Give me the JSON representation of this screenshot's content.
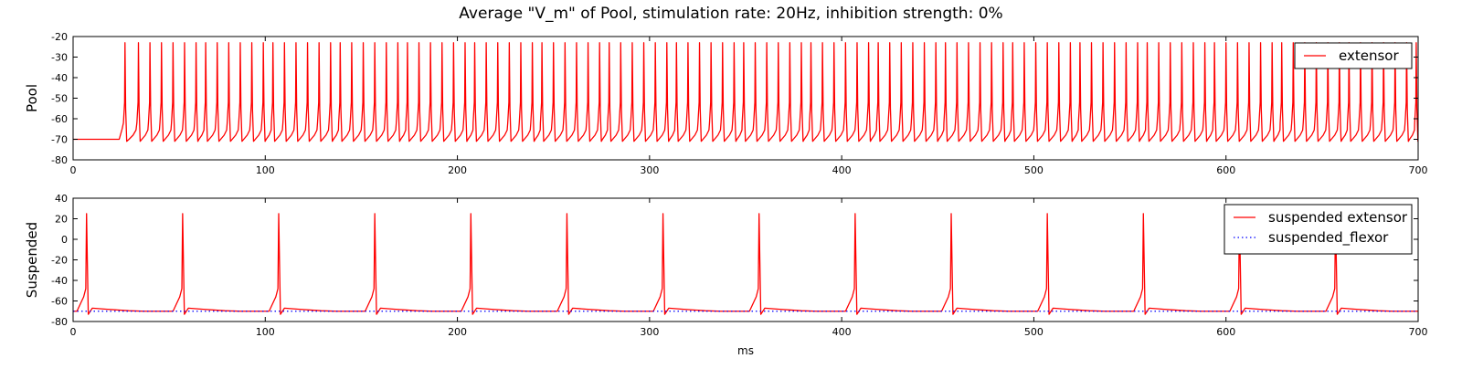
{
  "figure": {
    "title": "Average \"V_m\" of Pool, stimulation rate: 20Hz, inhibition strength: 0%"
  },
  "chart_data": [
    {
      "type": "line",
      "title": "",
      "xlabel": "",
      "ylabel": "Pool",
      "xlim": [
        0,
        700
      ],
      "ylim": [
        -80,
        -20
      ],
      "xticks": [
        0,
        100,
        200,
        300,
        400,
        500,
        600,
        700
      ],
      "yticks": [
        -80,
        -70,
        -60,
        -50,
        -40,
        -30,
        -20
      ],
      "legend_position": "top-right",
      "series": [
        {
          "name": "extensor",
          "color": "#ff0000",
          "style": "solid",
          "rest_value": -70,
          "onset_ms": 24,
          "trough_value": -71,
          "peak_value": -23,
          "spike_times": [
            27,
            34,
            40,
            46,
            52,
            58,
            64,
            69,
            75,
            81,
            87,
            93,
            99,
            104,
            110,
            116,
            122,
            128,
            134,
            139,
            145,
            151,
            157,
            163,
            169,
            174,
            180,
            186,
            192,
            198,
            204,
            209,
            215,
            221,
            227,
            233,
            239,
            244,
            250,
            256,
            262,
            268,
            274,
            279,
            285,
            291,
            297,
            303,
            309,
            314,
            320,
            326,
            332,
            338,
            344,
            349,
            355,
            361,
            367,
            373,
            379,
            384,
            390,
            396,
            402,
            408,
            414,
            419,
            425,
            431,
            437,
            443,
            449,
            454,
            460,
            466,
            472,
            478,
            484,
            489,
            495,
            501,
            507,
            513,
            519,
            524,
            530,
            536,
            542,
            548,
            554,
            559,
            565,
            571,
            577,
            583,
            589,
            594,
            600,
            606,
            612,
            618,
            624,
            629,
            635,
            641,
            647,
            653,
            659,
            664,
            670,
            676,
            682,
            688,
            694,
            699
          ]
        }
      ]
    },
    {
      "type": "line",
      "title": "",
      "xlabel": "ms",
      "ylabel": "Suspended",
      "xlim": [
        0,
        700
      ],
      "ylim": [
        -80,
        40
      ],
      "xticks": [
        0,
        100,
        200,
        300,
        400,
        500,
        600,
        700
      ],
      "yticks": [
        -80,
        -60,
        -40,
        -20,
        0,
        20,
        40
      ],
      "legend_position": "top-right",
      "series": [
        {
          "name": "suspended extensor",
          "color": "#ff0000",
          "style": "solid",
          "rest_value": -70,
          "peak_value": 25,
          "trough_value": -73,
          "afterpotential_value": -67,
          "spike_times": [
            7,
            57,
            107,
            157,
            207,
            257,
            307,
            357,
            407,
            457,
            507,
            557,
            607,
            657
          ]
        },
        {
          "name": "suspended_flexor",
          "color": "#0000ff",
          "style": "dotted",
          "constant_value": -70
        }
      ]
    }
  ]
}
